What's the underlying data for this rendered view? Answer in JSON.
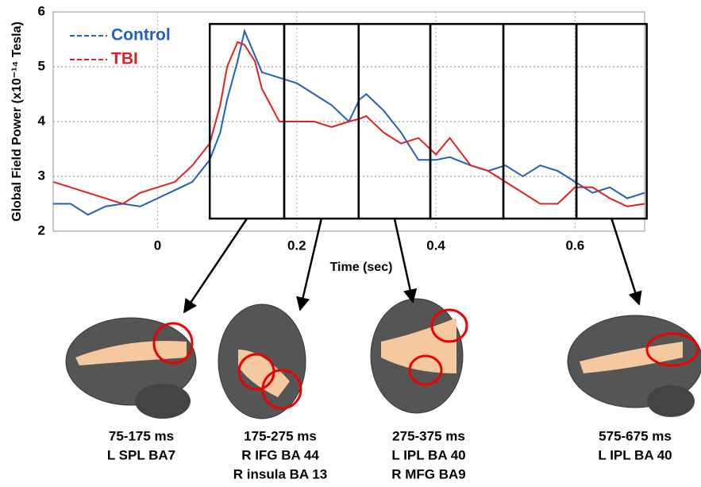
{
  "chart_data": {
    "type": "line",
    "ylabel": "Global Field Power (x10⁻¹⁴ Tesla)",
    "xlabel": "Time (sec)",
    "x": [
      -0.15,
      -0.125,
      -0.1,
      -0.075,
      -0.05,
      -0.025,
      0,
      0.025,
      0.05,
      0.075,
      0.09,
      0.1,
      0.115,
      0.125,
      0.14,
      0.15,
      0.175,
      0.2,
      0.225,
      0.25,
      0.275,
      0.29,
      0.3,
      0.325,
      0.35,
      0.375,
      0.4,
      0.42,
      0.45,
      0.475,
      0.5,
      0.525,
      0.55,
      0.575,
      0.6,
      0.625,
      0.65,
      0.675,
      0.7
    ],
    "series": [
      {
        "name": "Control",
        "color": "#1f5fc4",
        "values": [
          2.5,
          2.5,
          2.3,
          2.45,
          2.5,
          2.45,
          2.6,
          2.75,
          2.9,
          3.3,
          3.8,
          4.4,
          5.1,
          5.65,
          5.2,
          4.9,
          4.8,
          4.7,
          4.5,
          4.3,
          4.0,
          4.4,
          4.5,
          4.2,
          3.8,
          3.3,
          3.3,
          3.35,
          3.2,
          3.1,
          3.2,
          3.0,
          3.2,
          3.1,
          2.9,
          2.7,
          2.8,
          2.6,
          2.7
        ]
      },
      {
        "name": "TBI",
        "color": "#e02020",
        "values": [
          2.9,
          2.8,
          2.7,
          2.6,
          2.5,
          2.7,
          2.8,
          2.9,
          3.2,
          3.6,
          4.3,
          5.0,
          5.45,
          5.4,
          5.1,
          4.6,
          4.0,
          4.0,
          4.0,
          3.9,
          4.0,
          4.05,
          4.1,
          3.8,
          3.6,
          3.7,
          3.4,
          3.7,
          3.2,
          3.1,
          2.9,
          2.7,
          2.5,
          2.5,
          2.8,
          2.8,
          2.6,
          2.45,
          2.5
        ]
      }
    ],
    "xlim": [
      -0.15,
      0.7
    ],
    "xticks": [
      0,
      0.2,
      0.4,
      0.6
    ],
    "ylim": [
      2,
      6
    ],
    "yticks": [
      2,
      3,
      4,
      5,
      6
    ],
    "grid": true,
    "legend": "top-left",
    "windows": {
      "edges": [
        0.075,
        0.182,
        0.289,
        0.392,
        0.497,
        0.602,
        0.703
      ],
      "ylim": [
        2.23,
        5.78
      ]
    }
  },
  "brain_labels": [
    [
      "75-175 ms",
      "L SPL BA7"
    ],
    [
      "175-275 ms",
      "R IFG BA 44",
      "R insula BA 13"
    ],
    [
      "275-375 ms",
      "L IPL BA 40",
      "R MFG BA9"
    ],
    [
      "575-675 ms",
      "L IPL BA 40"
    ]
  ]
}
